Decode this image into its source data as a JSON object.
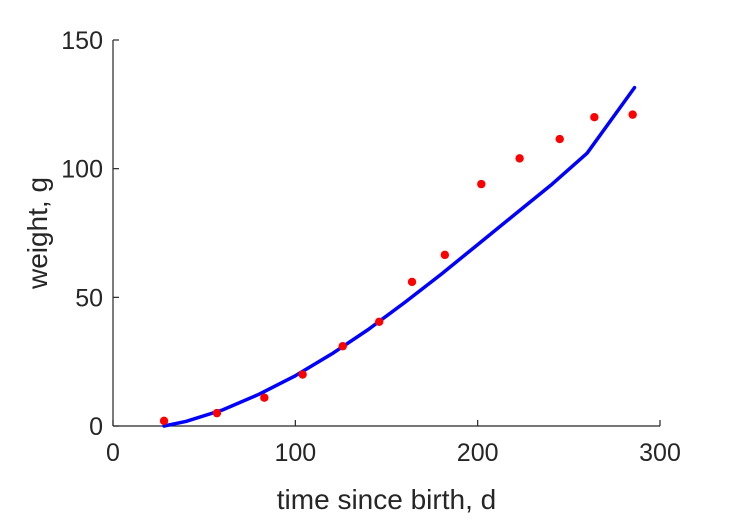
{
  "chart_data": {
    "type": "scatter",
    "title": "",
    "xlabel": "time since birth, d",
    "ylabel": "weight, g",
    "xlim": [
      0,
      300
    ],
    "ylim": [
      0,
      150
    ],
    "xticks": [
      0,
      100,
      200,
      300
    ],
    "yticks": [
      0,
      50,
      100,
      150
    ],
    "xtick_labels": [
      "0",
      "100",
      "200",
      "300"
    ],
    "ytick_labels": [
      "0",
      "50",
      "100",
      "150"
    ],
    "grid": false,
    "legend": "none",
    "series": [
      {
        "kind": "scatter",
        "color": "#ff0000",
        "x": [
          28,
          57,
          83,
          104,
          126,
          146,
          164,
          182,
          202,
          223,
          245,
          264,
          285
        ],
        "y": [
          2,
          5,
          11,
          20,
          31,
          40.5,
          56,
          66.5,
          94,
          104,
          111.5,
          120,
          121
        ]
      },
      {
        "kind": "line",
        "color": "#0000ff",
        "x": [
          28,
          40,
          60,
          80,
          100,
          120,
          140,
          160,
          180,
          200,
          220,
          240,
          260,
          286
        ],
        "y": [
          0,
          1.8,
          6.2,
          12.3,
          19.5,
          28,
          37.5,
          48,
          59,
          70.5,
          82,
          93.5,
          106,
          131.5
        ]
      }
    ]
  }
}
